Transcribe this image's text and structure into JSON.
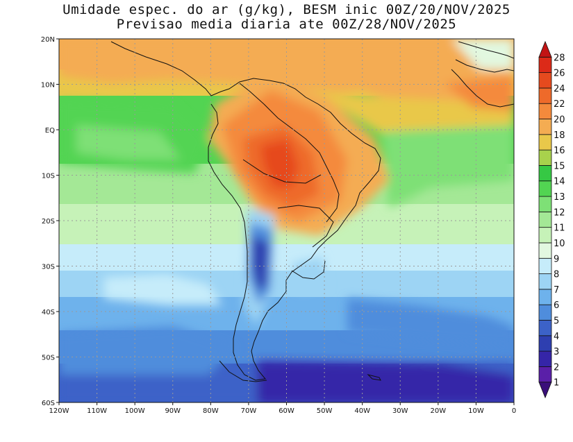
{
  "title_line1": "Umidade espec. do ar (g/kg), BESM inic 00Z/20/NOV/2025",
  "title_line2": "Previsao media diaria ate 00Z/28/NOV/2025",
  "lat_labels": [
    "20N",
    "10N",
    "EQ",
    "10S",
    "20S",
    "30S",
    "40S",
    "50S",
    "60S"
  ],
  "lon_labels": [
    "120W",
    "110W",
    "100W",
    "90W",
    "80W",
    "70W",
    "60W",
    "50W",
    "40W",
    "30W",
    "20W",
    "10W",
    "0"
  ],
  "colorbar": {
    "levels": [
      "1",
      "2",
      "3",
      "4",
      "5",
      "6",
      "7",
      "8",
      "9",
      "10",
      "11",
      "12",
      "13",
      "14",
      "15",
      "16",
      "18",
      "20",
      "22",
      "24",
      "26",
      "28"
    ],
    "colors": [
      "#3a0f7a",
      "#5a1fa8",
      "#3525a8",
      "#2e3fb0",
      "#3c62c8",
      "#4f8ddc",
      "#6eb2ec",
      "#9dd4f4",
      "#c6ecfa",
      "#e2f8e0",
      "#c6f2b8",
      "#a4e896",
      "#7ee076",
      "#52d452",
      "#36c844",
      "#a8d24c",
      "#e9c84a",
      "#f4ac52",
      "#f48a3c",
      "#ee6a2a",
      "#e64a1e",
      "#dc2a18",
      "#c21414"
    ],
    "units": "g/kg"
  }
}
